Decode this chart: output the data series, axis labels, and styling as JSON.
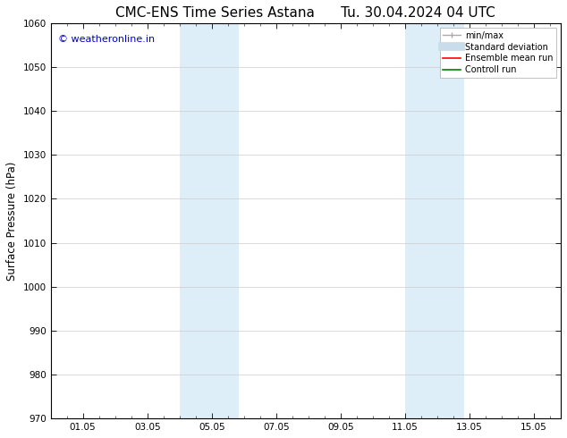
{
  "title": "CMC-ENS Time Series Astana",
  "title2": "Tu. 30.04.2024 04 UTC",
  "ylabel": "Surface Pressure (hPa)",
  "ylim": [
    970,
    1060
  ],
  "yticks": [
    970,
    980,
    990,
    1000,
    1010,
    1020,
    1030,
    1040,
    1050,
    1060
  ],
  "xtick_labels": [
    "01.05",
    "03.05",
    "05.05",
    "07.05",
    "09.05",
    "11.05",
    "13.05",
    "15.05"
  ],
  "xtick_positions": [
    1,
    3,
    5,
    7,
    9,
    11,
    13,
    15
  ],
  "xlim": [
    0.0,
    15.83
  ],
  "shaded_bands": [
    {
      "x_start": 4.0,
      "x_end": 5.83
    },
    {
      "x_start": 11.0,
      "x_end": 12.83
    }
  ],
  "shaded_color": "#ddeef8",
  "background_color": "#ffffff",
  "watermark_text": "© weatheronline.in",
  "watermark_color": "#0000cc",
  "watermark_fontsize": 8,
  "legend_items": [
    {
      "label": "min/max",
      "color": "#aaaaaa",
      "lw": 1.0,
      "linestyle": "-",
      "style": "minmax"
    },
    {
      "label": "Standard deviation",
      "color": "#c8dcea",
      "lw": 7,
      "linestyle": "-",
      "style": "band"
    },
    {
      "label": "Ensemble mean run",
      "color": "#ff0000",
      "lw": 1.2,
      "linestyle": "-",
      "style": "line"
    },
    {
      "label": "Controll run",
      "color": "#008000",
      "lw": 1.2,
      "linestyle": "-",
      "style": "line"
    }
  ],
  "title_fontsize": 11,
  "tick_fontsize": 7.5,
  "axis_label_fontsize": 8.5,
  "spine_color": "#000000"
}
